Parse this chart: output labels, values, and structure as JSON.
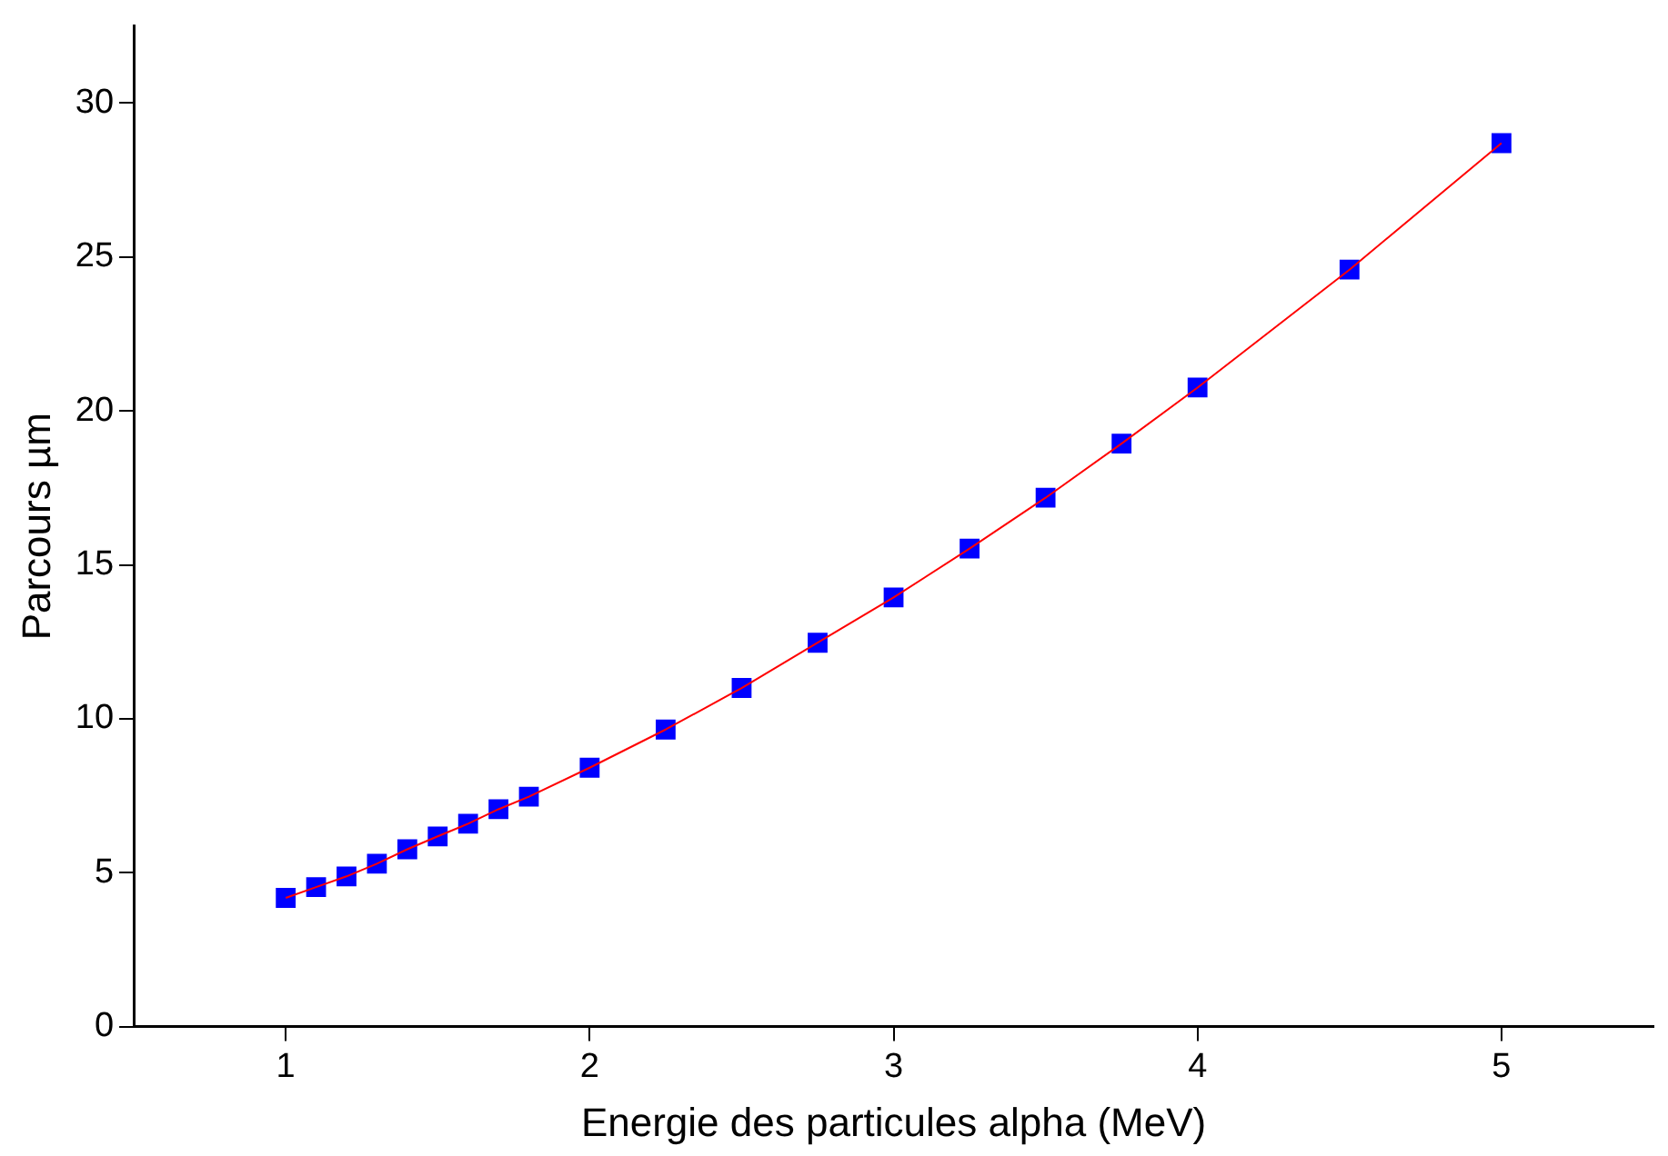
{
  "chart_data": {
    "type": "scatter",
    "xlabel": "Energie des particules alpha (MeV)",
    "ylabel": "Parcours µm",
    "x": [
      1,
      1.1,
      1.2,
      1.3,
      1.4,
      1.5,
      1.6,
      1.7,
      1.8,
      2,
      2.25,
      2.5,
      2.75,
      3,
      3.25,
      3.5,
      3.75,
      4,
      4.5,
      5
    ],
    "series": [
      {
        "type": "line",
        "marker": "none",
        "color": "#ff0000",
        "values": [
          4.18,
          4.53,
          4.88,
          5.29,
          5.76,
          6.18,
          6.59,
          7.06,
          7.47,
          8.41,
          9.65,
          11.0,
          12.47,
          13.94,
          15.53,
          17.18,
          18.94,
          20.76,
          24.59,
          28.7
        ]
      },
      {
        "color": "#0000ff",
        "values": [
          4.18,
          4.53,
          4.88,
          5.29,
          5.76,
          6.18,
          6.59,
          7.06,
          7.47,
          8.41,
          9.65,
          11.0,
          12.47,
          13.94,
          15.53,
          17.18,
          18.94,
          20.76,
          24.59,
          28.7
        ]
      }
    ],
    "xlim": [
      0.5,
      5.5
    ],
    "xticks": [
      1,
      2,
      3,
      4,
      5
    ],
    "ylim": [
      0,
      32.5
    ],
    "yticks": [
      0,
      5,
      10,
      15,
      20,
      25,
      30
    ],
    "grid": false,
    "legend": false,
    "marker": "square",
    "line_style": "solid"
  }
}
